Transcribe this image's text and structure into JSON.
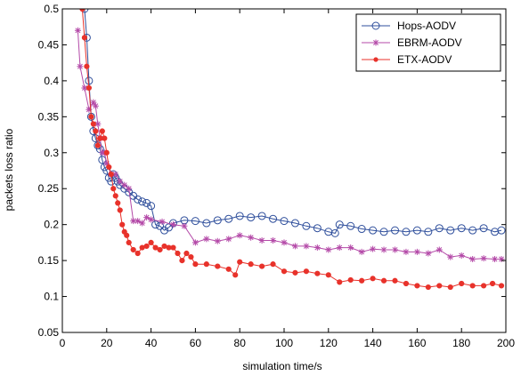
{
  "chart_data": {
    "type": "line",
    "title": "",
    "xlabel": "simulation time/s",
    "ylabel": "packets loss ratio",
    "xlim": [
      0,
      200
    ],
    "ylim": [
      0.05,
      0.5
    ],
    "x_ticks": [
      0,
      20,
      40,
      60,
      80,
      100,
      120,
      140,
      160,
      180,
      200
    ],
    "y_ticks": [
      0.05,
      0.1,
      0.15,
      0.2,
      0.25,
      0.3,
      0.35,
      0.4,
      0.45,
      0.5
    ],
    "x_tick_labels": [
      "0",
      "20",
      "40",
      "60",
      "80",
      "100",
      "120",
      "140",
      "160",
      "180",
      "200"
    ],
    "y_tick_labels": [
      "0.05",
      "0.1",
      "0.15",
      "0.2",
      "0.25",
      "0.3",
      "0.35",
      "0.4",
      "0.45",
      "0.5"
    ],
    "grid": false,
    "legend_position": "top-right",
    "series": [
      {
        "name": "Hops-AODV",
        "color": "#2f4f9c",
        "marker": "circle-open",
        "x": [
          10,
          11,
          12,
          13,
          14,
          15,
          16,
          17,
          18,
          19,
          20,
          21,
          22,
          23,
          24,
          25,
          26,
          28,
          30,
          32,
          34,
          36,
          38,
          40,
          42,
          44,
          46,
          48,
          50,
          55,
          60,
          65,
          70,
          75,
          80,
          85,
          90,
          95,
          100,
          105,
          110,
          115,
          120,
          123,
          125,
          130,
          135,
          140,
          145,
          150,
          155,
          160,
          165,
          170,
          175,
          180,
          185,
          190,
          195,
          198
        ],
        "y": [
          0.5,
          0.46,
          0.4,
          0.35,
          0.33,
          0.32,
          0.31,
          0.305,
          0.29,
          0.28,
          0.275,
          0.265,
          0.26,
          0.27,
          0.265,
          0.26,
          0.255,
          0.25,
          0.245,
          0.24,
          0.235,
          0.232,
          0.23,
          0.226,
          0.2,
          0.198,
          0.192,
          0.196,
          0.202,
          0.206,
          0.205,
          0.202,
          0.206,
          0.208,
          0.212,
          0.21,
          0.212,
          0.208,
          0.205,
          0.202,
          0.198,
          0.195,
          0.19,
          0.188,
          0.2,
          0.198,
          0.194,
          0.192,
          0.19,
          0.192,
          0.19,
          0.192,
          0.19,
          0.195,
          0.192,
          0.195,
          0.192,
          0.195,
          0.19,
          0.192
        ]
      },
      {
        "name": "EBRM-AODV",
        "color": "#b44aa8",
        "marker": "star",
        "x": [
          7,
          8,
          10,
          12,
          14,
          15,
          16,
          17,
          18,
          19,
          20,
          22,
          24,
          26,
          28,
          30,
          32,
          34,
          36,
          38,
          40,
          45,
          50,
          55,
          60,
          65,
          70,
          75,
          80,
          85,
          90,
          95,
          100,
          105,
          110,
          115,
          120,
          125,
          130,
          135,
          140,
          145,
          150,
          155,
          160,
          165,
          170,
          175,
          180,
          185,
          190,
          195,
          198
        ],
        "y": [
          0.47,
          0.42,
          0.39,
          0.36,
          0.37,
          0.365,
          0.34,
          0.32,
          0.3,
          0.3,
          0.285,
          0.27,
          0.27,
          0.26,
          0.255,
          0.25,
          0.205,
          0.205,
          0.202,
          0.21,
          0.207,
          0.204,
          0.2,
          0.198,
          0.175,
          0.18,
          0.177,
          0.18,
          0.185,
          0.182,
          0.178,
          0.178,
          0.175,
          0.17,
          0.17,
          0.168,
          0.165,
          0.168,
          0.168,
          0.162,
          0.166,
          0.165,
          0.165,
          0.162,
          0.162,
          0.16,
          0.165,
          0.155,
          0.157,
          0.152,
          0.153,
          0.152,
          0.152
        ]
      },
      {
        "name": "ETX-AODV",
        "color": "#e8322b",
        "marker": "dot",
        "x": [
          9,
          10,
          11,
          12,
          13,
          14,
          15,
          16,
          17,
          18,
          19,
          20,
          21,
          22,
          23,
          24,
          25,
          26,
          27,
          28,
          29,
          30,
          32,
          34,
          36,
          38,
          40,
          42,
          44,
          46,
          48,
          50,
          52,
          54,
          56,
          58,
          60,
          65,
          70,
          75,
          78,
          80,
          85,
          90,
          95,
          100,
          105,
          110,
          115,
          120,
          125,
          130,
          135,
          140,
          145,
          150,
          155,
          160,
          165,
          170,
          175,
          180,
          185,
          190,
          194,
          198
        ],
        "y": [
          0.5,
          0.46,
          0.42,
          0.39,
          0.35,
          0.34,
          0.33,
          0.31,
          0.32,
          0.33,
          0.32,
          0.3,
          0.28,
          0.27,
          0.25,
          0.24,
          0.23,
          0.22,
          0.2,
          0.19,
          0.185,
          0.175,
          0.165,
          0.16,
          0.168,
          0.17,
          0.175,
          0.168,
          0.165,
          0.17,
          0.168,
          0.168,
          0.16,
          0.15,
          0.16,
          0.155,
          0.145,
          0.145,
          0.142,
          0.138,
          0.13,
          0.148,
          0.145,
          0.142,
          0.145,
          0.135,
          0.133,
          0.135,
          0.132,
          0.13,
          0.12,
          0.123,
          0.122,
          0.125,
          0.122,
          0.122,
          0.118,
          0.115,
          0.113,
          0.115,
          0.113,
          0.118,
          0.115,
          0.115,
          0.118,
          0.115
        ]
      }
    ]
  }
}
